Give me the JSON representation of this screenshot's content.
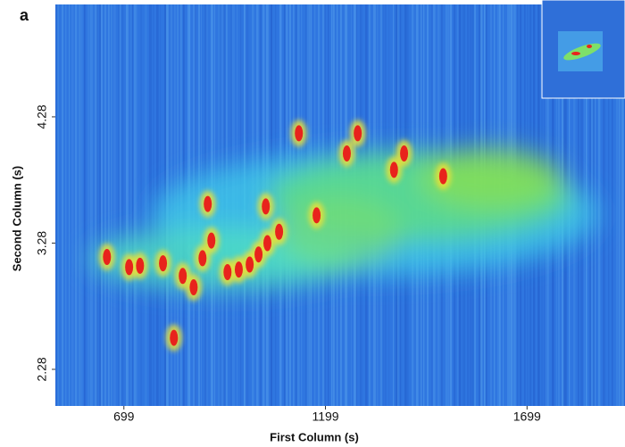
{
  "chart_data": {
    "type": "contour",
    "panel_label": "a",
    "xlabel": "First Column (s)",
    "ylabel": "Second Column (s)",
    "xlim": [
      529,
      1942
    ],
    "ylim": [
      1.99,
      5.17
    ],
    "xticks": [
      699,
      1199,
      1699
    ],
    "yticks": [
      2.28,
      3.28,
      4.28
    ],
    "color": "#e8231c",
    "x": [
      657,
      712,
      739,
      796,
      845,
      872,
      894,
      916,
      907,
      956,
      984,
      1011,
      1033,
      1055,
      1084,
      1133,
      1177,
      1252,
      1279,
      1369,
      1394,
      1491,
      823,
      1051
    ],
    "values": [
      3.17,
      3.09,
      3.1,
      3.12,
      3.02,
      2.93,
      3.16,
      3.3,
      3.59,
      3.05,
      3.07,
      3.11,
      3.19,
      3.28,
      3.37,
      4.15,
      3.5,
      3.99,
      4.15,
      3.86,
      3.99,
      3.81,
      2.53,
      3.57
    ]
  }
}
